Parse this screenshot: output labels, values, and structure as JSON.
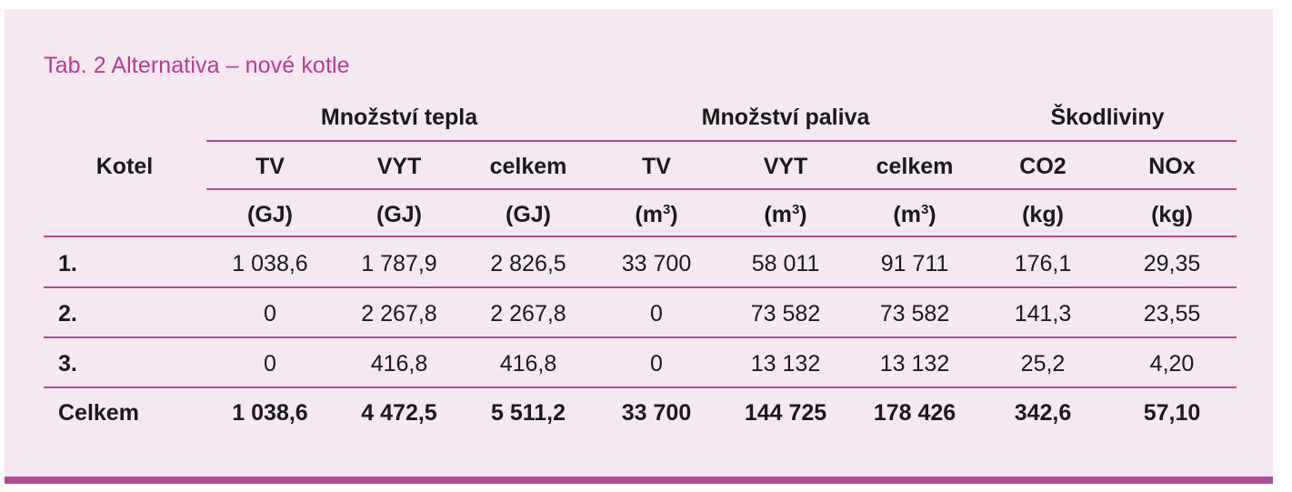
{
  "table": {
    "caption": "Tab. 2 Alternativa – nové kotle",
    "group_headers": [
      "Množství tepla",
      "Množství paliva",
      "Škodliviny"
    ],
    "row_header_label": "Kotel",
    "columns": [
      "TV",
      "VYT",
      "celkem",
      "TV",
      "VYT",
      "celkem",
      "CO2",
      "NOx"
    ],
    "units": [
      "(GJ)",
      "(GJ)",
      "(GJ)",
      "(m",
      "(m",
      "(m",
      "(kg)",
      "(kg)"
    ],
    "unit_sup": "3",
    "unit_close": ")",
    "rows": [
      {
        "label": "1.",
        "values": [
          "1 038,6",
          "1 787,9",
          "2 826,5",
          "33 700",
          "58 011",
          "91 711",
          "176,1",
          "29,35"
        ]
      },
      {
        "label": "2.",
        "values": [
          "0",
          "2 267,8",
          "2 267,8",
          "0",
          "73 582",
          "73 582",
          "141,3",
          "23,55"
        ]
      },
      {
        "label": "3.",
        "values": [
          "0",
          "416,8",
          "416,8",
          "0",
          "13 132",
          "13 132",
          "25,2",
          "4,20"
        ]
      }
    ],
    "total": {
      "label": "Celkem",
      "values": [
        "1 038,6",
        "4 472,5",
        "5 511,2",
        "33 700",
        "144 725",
        "178 426",
        "342,6",
        "57,10"
      ]
    }
  },
  "colors": {
    "accent": "#b24a97",
    "caption": "#b83b95",
    "background": "#f6e8f2"
  }
}
